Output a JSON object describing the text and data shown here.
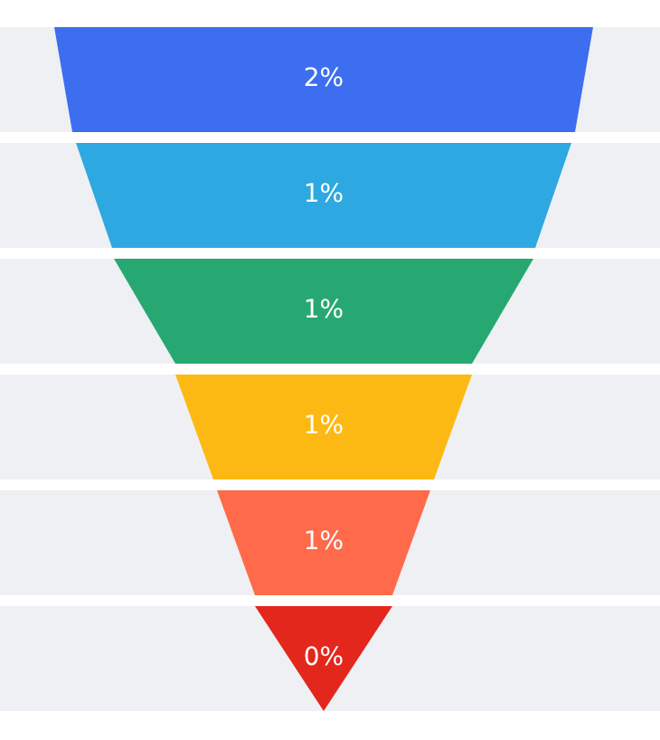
{
  "chart_data": {
    "type": "other",
    "values": [
      2,
      1,
      1,
      1,
      1,
      0
    ],
    "value_labels": [
      "2%",
      "1%",
      "1%",
      "1%",
      "1%",
      "0%"
    ],
    "colors": [
      "#3d6ef0",
      "#2ea8e0",
      "#27a872",
      "#fdb913",
      "#ff6b4a",
      "#e3271c"
    ]
  }
}
